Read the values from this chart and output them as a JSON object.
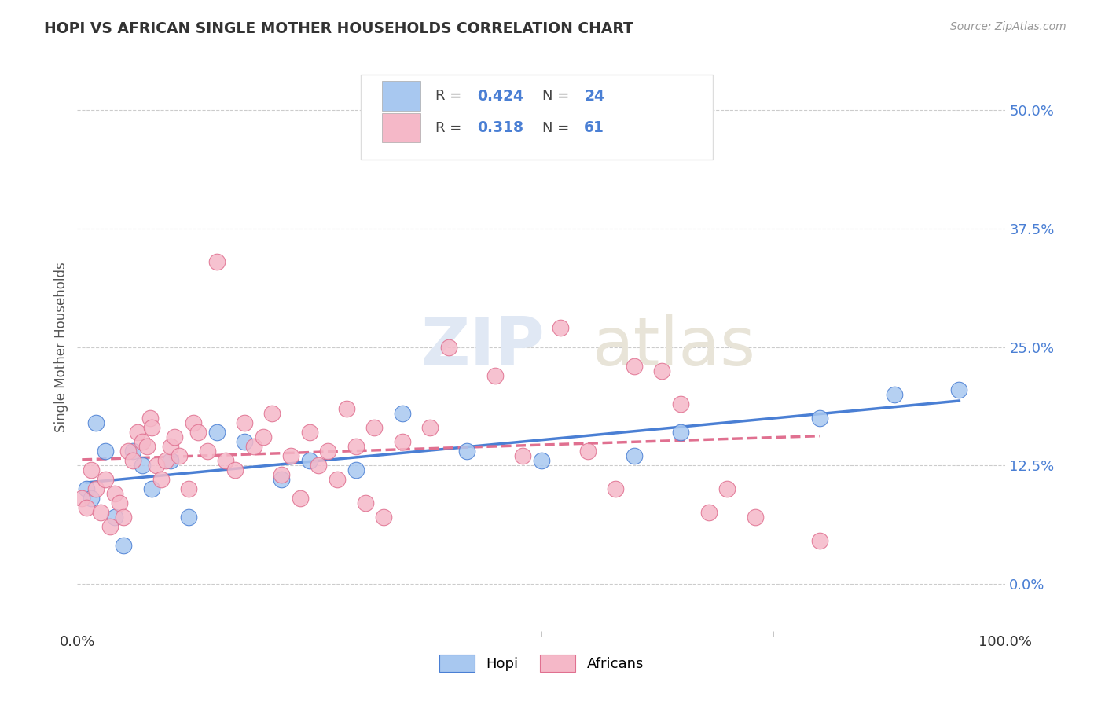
{
  "title": "HOPI VS AFRICAN SINGLE MOTHER HOUSEHOLDS CORRELATION CHART",
  "source": "Source: ZipAtlas.com",
  "ylabel": "Single Mother Households",
  "xlim": [
    0,
    100
  ],
  "ylim": [
    -5,
    55
  ],
  "ytick_vals": [
    0,
    12.5,
    25,
    37.5,
    50
  ],
  "ytick_labels": [
    "0.0%",
    "12.5%",
    "25.0%",
    "37.5%",
    "50.0%"
  ],
  "xtick_vals": [
    0,
    100
  ],
  "xtick_labels": [
    "0.0%",
    "100.0%"
  ],
  "hopi_color": "#a8c8f0",
  "african_color": "#f5b8c8",
  "hopi_line_color": "#4a7fd4",
  "african_line_color": "#e07090",
  "ytick_color": "#4a7fd4",
  "watermark_zip": "ZIP",
  "watermark_atlas": "atlas",
  "background_color": "#ffffff",
  "hopi_x": [
    1.0,
    1.5,
    2.0,
    3.0,
    4.0,
    5.0,
    6.0,
    7.0,
    8.0,
    10.0,
    12.0,
    15.0,
    18.0,
    22.0,
    25.0,
    30.0,
    35.0,
    42.0,
    50.0,
    60.0,
    65.0,
    80.0,
    88.0,
    95.0
  ],
  "hopi_y": [
    10.0,
    9.0,
    17.0,
    14.0,
    7.0,
    4.0,
    14.0,
    12.5,
    10.0,
    13.0,
    7.0,
    16.0,
    15.0,
    11.0,
    13.0,
    12.0,
    18.0,
    14.0,
    13.0,
    13.5,
    16.0,
    17.5,
    20.0,
    20.5
  ],
  "african_x": [
    0.5,
    1.0,
    1.5,
    2.0,
    2.5,
    3.0,
    3.5,
    4.0,
    4.5,
    5.0,
    5.5,
    6.0,
    6.5,
    7.0,
    7.5,
    7.8,
    8.0,
    8.5,
    9.0,
    9.5,
    10.0,
    10.5,
    11.0,
    12.0,
    12.5,
    13.0,
    14.0,
    15.0,
    16.0,
    17.0,
    18.0,
    19.0,
    20.0,
    21.0,
    22.0,
    23.0,
    24.0,
    25.0,
    26.0,
    27.0,
    28.0,
    29.0,
    30.0,
    31.0,
    32.0,
    33.0,
    35.0,
    38.0,
    40.0,
    45.0,
    48.0,
    52.0,
    55.0,
    58.0,
    60.0,
    63.0,
    65.0,
    68.0,
    70.0,
    73.0,
    80.0
  ],
  "african_y": [
    9.0,
    8.0,
    12.0,
    10.0,
    7.5,
    11.0,
    6.0,
    9.5,
    8.5,
    7.0,
    14.0,
    13.0,
    16.0,
    15.0,
    14.5,
    17.5,
    16.5,
    12.5,
    11.0,
    13.0,
    14.5,
    15.5,
    13.5,
    10.0,
    17.0,
    16.0,
    14.0,
    34.0,
    13.0,
    12.0,
    17.0,
    14.5,
    15.5,
    18.0,
    11.5,
    13.5,
    9.0,
    16.0,
    12.5,
    14.0,
    11.0,
    18.5,
    14.5,
    8.5,
    16.5,
    7.0,
    15.0,
    16.5,
    25.0,
    22.0,
    13.5,
    27.0,
    14.0,
    10.0,
    23.0,
    22.5,
    19.0,
    7.5,
    10.0,
    7.0,
    4.5
  ]
}
